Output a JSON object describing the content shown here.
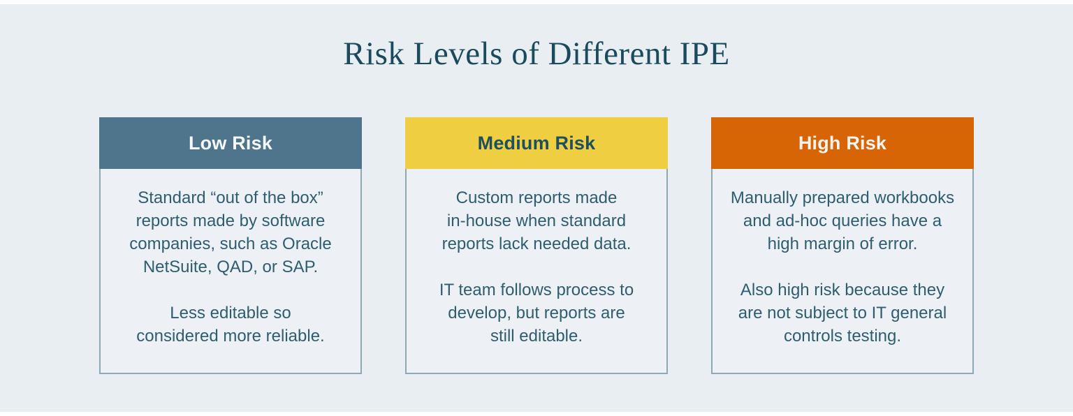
{
  "page": {
    "title": "Risk Levels of Different IPE",
    "colors": {
      "background": "#e9eef3",
      "frame": "#ffffff",
      "title_text": "#1b4a5d",
      "body_text": "#2e5d6e",
      "card_border": "#8ea8b5",
      "card_body_bg": "#edf1f5"
    }
  },
  "cards": [
    {
      "id": "low-risk",
      "label": "Low Risk",
      "header_bg": "#4e758b",
      "header_text": "#f5f7f8",
      "paragraphs": [
        "Standard “out of the box”\nreports made by software\ncompanies, such as Oracle\nNetSuite, QAD, or SAP.",
        "Less editable so\nconsidered more reliable."
      ]
    },
    {
      "id": "medium-risk",
      "label": "Medium Risk",
      "header_bg": "#f0ce41",
      "header_text": "#1d4f5e",
      "paragraphs": [
        "Custom reports made\nin-house when standard\nreports lack needed data.",
        "IT team follows process to\ndevelop, but reports are\nstill editable."
      ]
    },
    {
      "id": "high-risk",
      "label": "High Risk",
      "header_bg": "#d76506",
      "header_text": "#f7f3ef",
      "paragraphs": [
        "Manually prepared workbooks\nand ad-hoc queries have a\nhigh margin of error.",
        "Also high risk because they\nare not subject to IT general\ncontrols testing."
      ]
    }
  ]
}
